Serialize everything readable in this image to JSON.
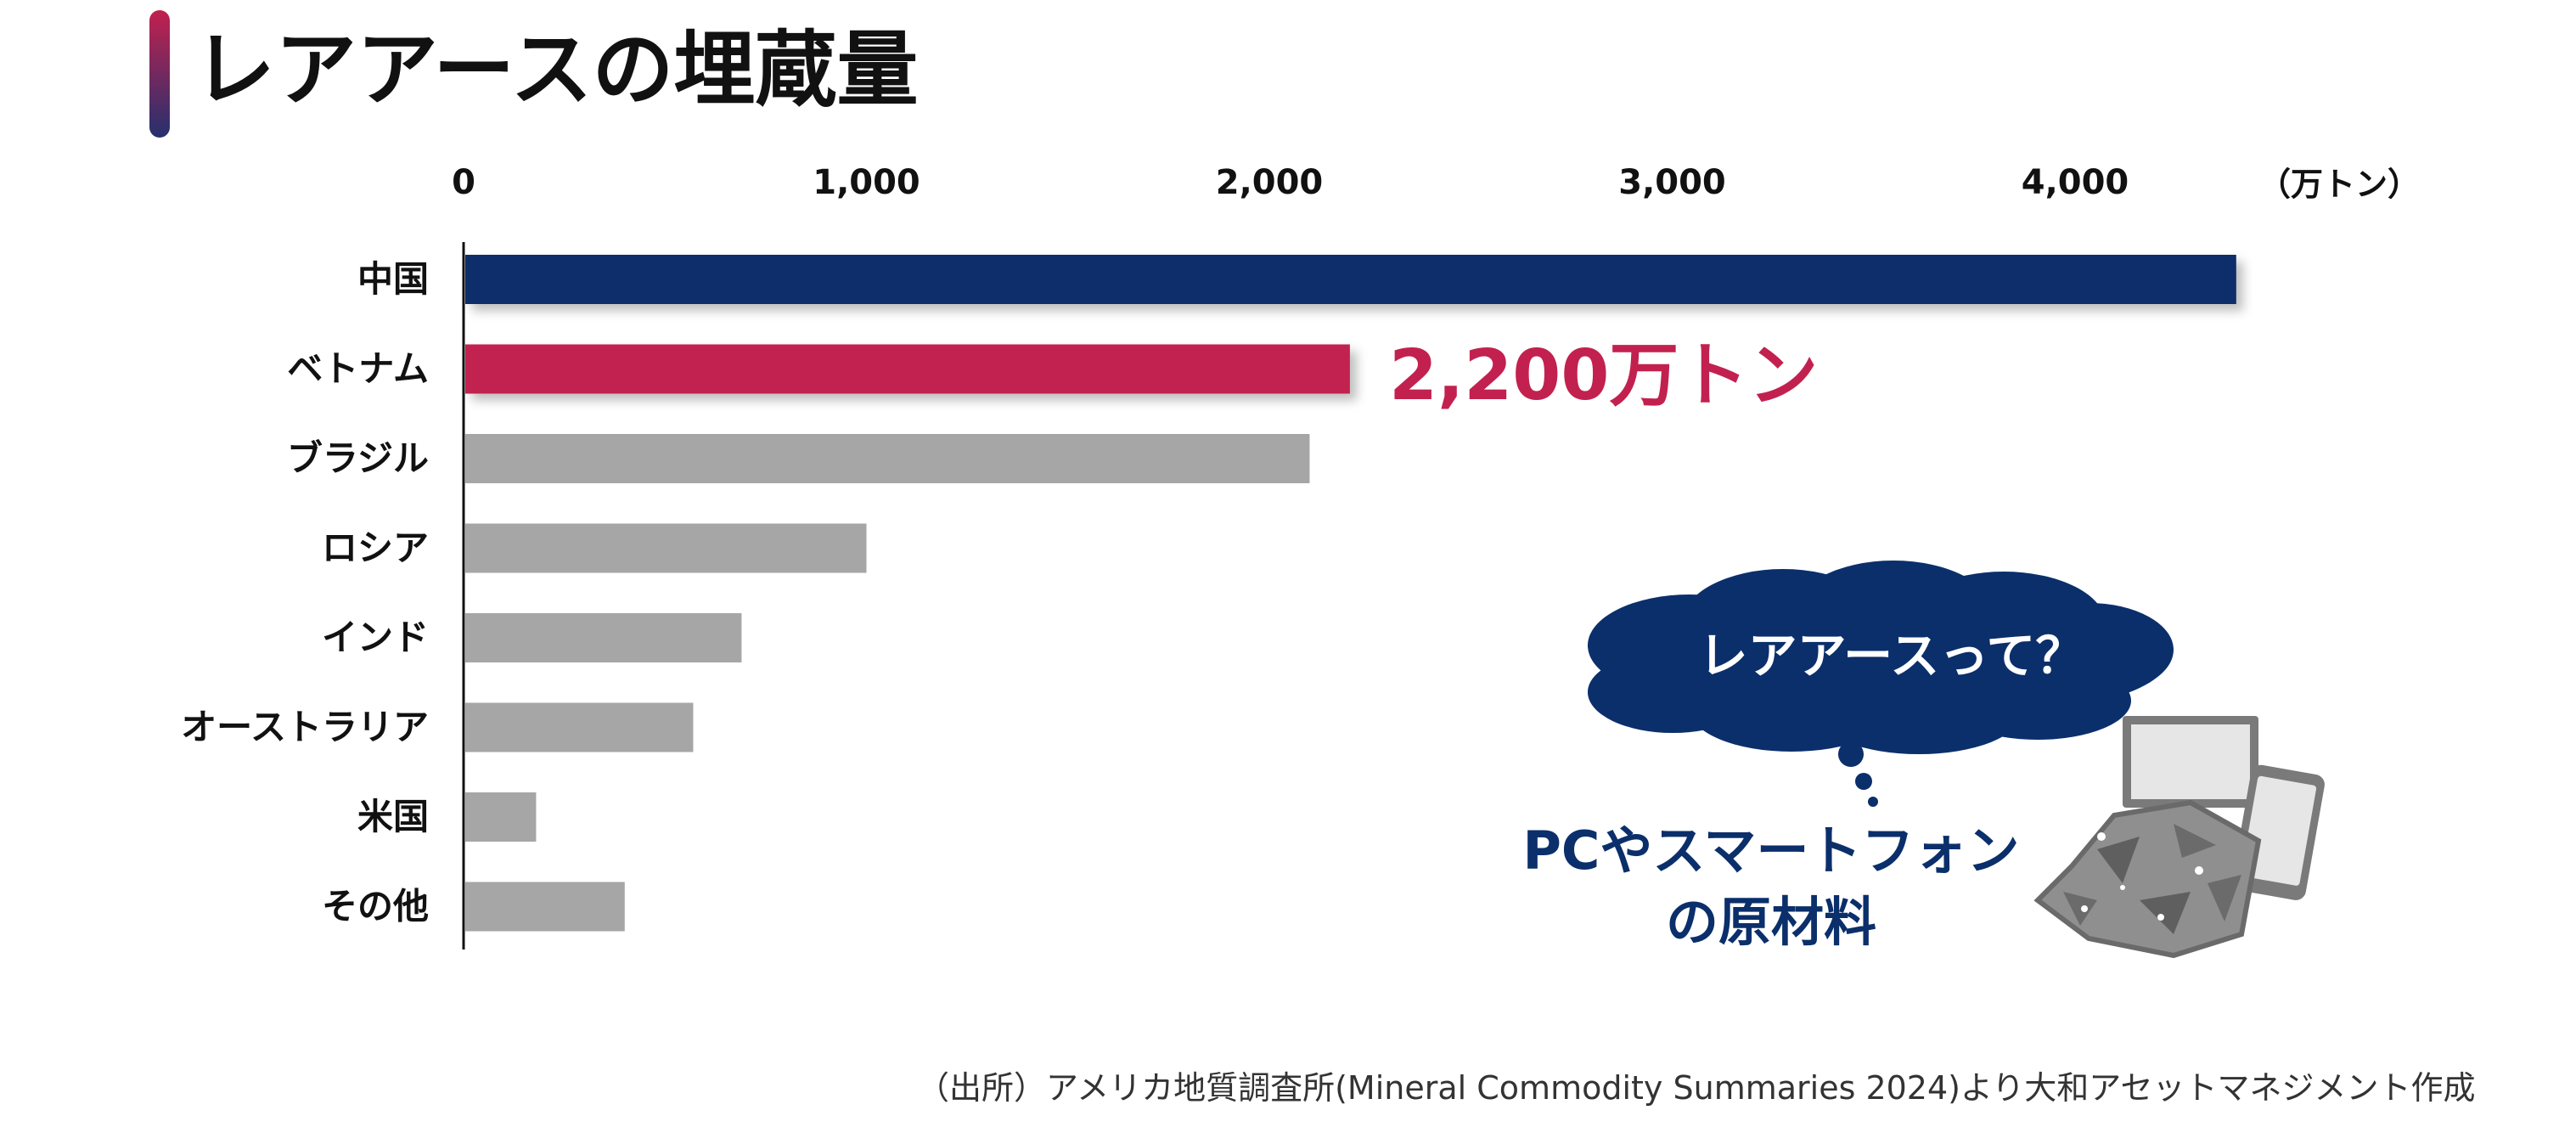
{
  "title": "レアアースの埋蔵量",
  "unit_label": "（万トン）",
  "highlight_label": "2,200万トン",
  "callout": {
    "bubble_text": "レアアースって？",
    "caption_line1": "PCやスマートフォン",
    "caption_line2": "の原材料"
  },
  "source": "（出所）アメリカ地質調査所(Mineral Commodity Summaries 2024)より大和アセットマネジメント作成",
  "colors": {
    "highlight_china": "#0b2f6b",
    "highlight_vietnam": "#c2214f",
    "other_bars": "#a6a6a6",
    "callout_navy": "#0b2f6b"
  },
  "icons": [
    "thought-cloud-icon",
    "monitor-icon",
    "smartphone-icon",
    "rare-earth-rock-icon"
  ],
  "chart_data": {
    "type": "bar",
    "orientation": "horizontal",
    "categories": [
      "中国",
      "ベトナム",
      "ブラジル",
      "ロシア",
      "インド",
      "オーストラリア",
      "米国",
      "その他"
    ],
    "values": [
      4400,
      2200,
      2100,
      1000,
      690,
      570,
      180,
      400
    ],
    "xlim": [
      0,
      4400
    ],
    "xticks": [
      0,
      1000,
      2000,
      3000,
      4000
    ],
    "xtick_labels": [
      "0",
      "1,000",
      "2,000",
      "3,000",
      "4,000"
    ],
    "axis_position": "top",
    "grid": false,
    "legend": "none"
  }
}
